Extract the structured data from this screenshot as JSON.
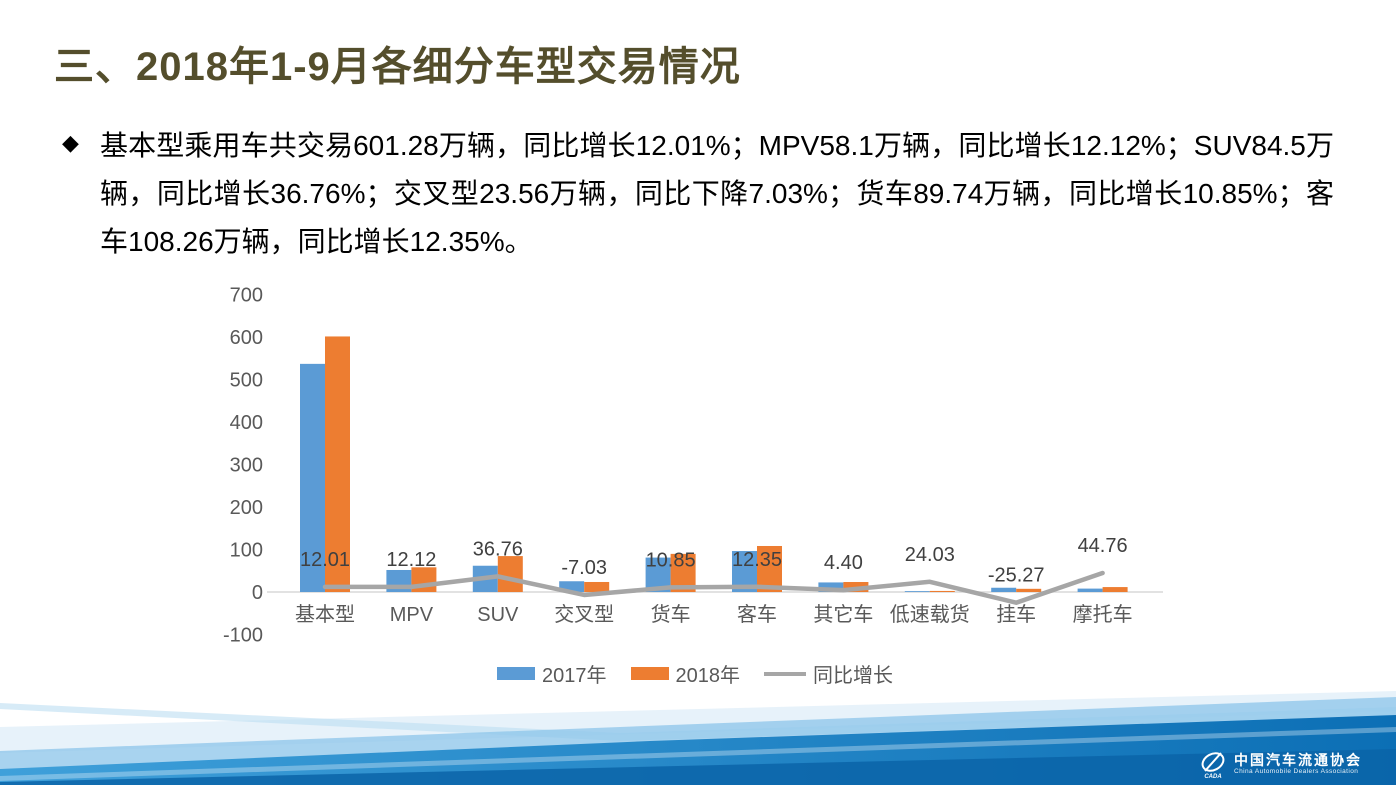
{
  "slide": {
    "title": "三、2018年1-9月各细分车型交易情况",
    "bullet_marker": "◆",
    "bullet_text": "基本型乘用车共交易601.28万辆，同比增长12.01%；MPV58.1万辆，同比增长12.12%；SUV84.5万辆，同比增长36.76%；交叉型23.56万辆，同比下降7.03%；货车89.74万辆，同比增长10.85%；客车108.26万辆，同比增长12.35%。"
  },
  "chart_data": {
    "type": "bar",
    "subtype": "grouped bars with overlaid line (combo chart, single shared axis)",
    "categories": [
      "基本型",
      "MPV",
      "SUV",
      "交叉型",
      "货车",
      "客车",
      "其它车",
      "低速载货",
      "挂车",
      "摩托车"
    ],
    "series": [
      {
        "name": "2017年",
        "type": "bar",
        "color": "#5B9BD5",
        "values": [
          536.8,
          51.8,
          61.8,
          25.3,
          81.0,
          96.4,
          22.5,
          2.0,
          10.0,
          8.0
        ]
      },
      {
        "name": "2018年",
        "type": "bar",
        "color": "#ED7D31",
        "values": [
          601.28,
          58.1,
          84.5,
          23.56,
          89.74,
          108.26,
          23.5,
          2.5,
          7.5,
          11.6
        ]
      },
      {
        "name": "同比增长",
        "type": "line",
        "color": "#A6A6A6",
        "values": [
          12.01,
          12.12,
          36.76,
          -7.03,
          10.85,
          12.35,
          4.4,
          24.03,
          -25.27,
          44.76
        ],
        "data_labels": [
          "12.01",
          "12.12",
          "36.76",
          "-7.03",
          "10.85",
          "12.35",
          "4.40",
          "24.03",
          "-25.27",
          "44.76"
        ]
      }
    ],
    "y_axis": {
      "min": -100,
      "max": 700,
      "step": 100,
      "ticks": [
        "700",
        "600",
        "500",
        "400",
        "300",
        "200",
        "100",
        "0",
        "-100"
      ]
    },
    "legend": [
      "2017年",
      "2018年",
      "同比增长"
    ],
    "legend_position": "bottom",
    "gridlines": false,
    "title": "",
    "xlabel": "",
    "ylabel": ""
  },
  "footer": {
    "logo_text_cn": "中国汽车流通协会",
    "logo_text_en": "China Automobile Dealers Association"
  },
  "colors": {
    "title_text": "#544E2C",
    "body_text": "#000000",
    "bar_2017": "#5B9BD5",
    "bar_2018": "#ED7D31",
    "growth_line": "#A6A6A6",
    "axis_text": "#595959",
    "data_label_text": "#404040",
    "axis_line": "#D9D9D9",
    "footer_blue_dark": "#0C6FB5",
    "footer_blue_light": "#8FC6EA"
  }
}
